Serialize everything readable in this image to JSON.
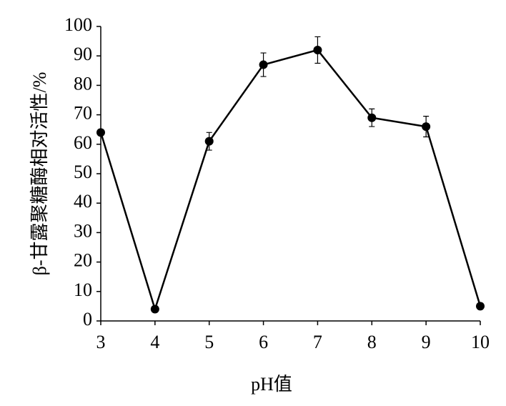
{
  "chart_data": {
    "type": "line",
    "x_label": "pH值",
    "y_label": "β-甘露聚糖酶相对活性/%",
    "x": [
      3,
      4,
      5,
      6,
      7,
      8,
      9,
      10
    ],
    "series": [
      {
        "name": "relative activity",
        "color": "#000000",
        "values": [
          64,
          4,
          61,
          87,
          92,
          69,
          66,
          5
        ],
        "errors": [
          1,
          1,
          3,
          4,
          4.5,
          3,
          3.5,
          1
        ]
      }
    ],
    "xlim": [
      3,
      10
    ],
    "ylim": [
      0,
      100
    ],
    "xticks": [
      3,
      4,
      5,
      6,
      7,
      8,
      9,
      10
    ],
    "yticks": [
      0,
      10,
      20,
      30,
      40,
      50,
      60,
      70,
      80,
      90,
      100
    ],
    "grid": false
  }
}
